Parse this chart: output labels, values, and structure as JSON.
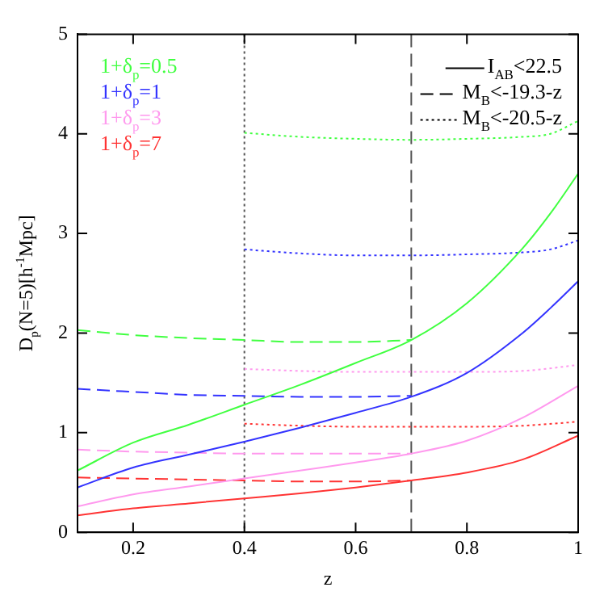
{
  "chart_data": {
    "type": "line",
    "xlabel": "z",
    "ylabel": "D$_{p}$(N=5)[h$^{-1}$Mpc]",
    "xlim": [
      0.1,
      1
    ],
    "ylim": [
      0,
      5
    ],
    "xticks": [
      0.2,
      0.4,
      0.6,
      0.8,
      1
    ],
    "yticks": [
      0,
      1,
      2,
      3,
      4,
      5
    ],
    "grid": false,
    "legend": "top left",
    "marker": "none",
    "series": [
      {
        "name": "1+δ$_{p}$=0.5",
        "color": "#40ff40",
        "line_style": "solid",
        "x": [
          0.1,
          0.2,
          0.3,
          0.4,
          0.5,
          0.6,
          0.7,
          0.8,
          0.9,
          0.95,
          1
        ],
        "values": [
          0.62,
          0.9,
          1.08,
          1.28,
          1.48,
          1.7,
          1.93,
          2.3,
          2.85,
          3.2,
          3.6
        ]
      },
      {
        "name": "1+δ$_{p}$=1",
        "color": "#3333ff",
        "line_style": "solid",
        "x": [
          0.1,
          0.2,
          0.3,
          0.4,
          0.5,
          0.6,
          0.7,
          0.8,
          0.9,
          0.95,
          1
        ],
        "values": [
          0.45,
          0.65,
          0.78,
          0.91,
          1.05,
          1.2,
          1.36,
          1.6,
          2.0,
          2.25,
          2.52
        ]
      },
      {
        "name": "1+δ$_{p}$=3",
        "color": "#ff99ee",
        "line_style": "solid",
        "x": [
          0.1,
          0.2,
          0.3,
          0.4,
          0.5,
          0.6,
          0.7,
          0.8,
          0.9,
          1
        ],
        "values": [
          0.26,
          0.38,
          0.46,
          0.54,
          0.62,
          0.7,
          0.79,
          0.92,
          1.15,
          1.47
        ]
      },
      {
        "name": "1+δ$_{p}$=7",
        "color": "#ff3333",
        "line_style": "solid",
        "x": [
          0.1,
          0.2,
          0.3,
          0.4,
          0.5,
          0.6,
          0.7,
          0.8,
          0.9,
          1
        ],
        "values": [
          0.17,
          0.24,
          0.29,
          0.34,
          0.39,
          0.45,
          0.52,
          0.6,
          0.73,
          0.97
        ]
      },
      {
        "color": "#40ff40",
        "line_style": "dashed",
        "x": [
          0.1,
          0.2,
          0.3,
          0.4,
          0.5,
          0.6,
          0.7
        ],
        "values": [
          2.03,
          1.98,
          1.95,
          1.93,
          1.91,
          1.91,
          1.93
        ]
      },
      {
        "color": "#3333ff",
        "line_style": "dashed",
        "x": [
          0.1,
          0.2,
          0.3,
          0.4,
          0.5,
          0.6,
          0.7
        ],
        "values": [
          1.44,
          1.41,
          1.38,
          1.37,
          1.36,
          1.36,
          1.37
        ]
      },
      {
        "color": "#ff99ee",
        "line_style": "dashed",
        "x": [
          0.1,
          0.2,
          0.3,
          0.4,
          0.5,
          0.6,
          0.7
        ],
        "values": [
          0.83,
          0.81,
          0.8,
          0.79,
          0.79,
          0.79,
          0.79
        ]
      },
      {
        "color": "#ff3333",
        "line_style": "dashed",
        "x": [
          0.1,
          0.2,
          0.3,
          0.4,
          0.5,
          0.6,
          0.7
        ],
        "values": [
          0.55,
          0.54,
          0.53,
          0.52,
          0.51,
          0.51,
          0.52
        ]
      },
      {
        "color": "#40ff40",
        "line_style": "dotted",
        "x": [
          0.4,
          0.5,
          0.6,
          0.7,
          0.8,
          0.9,
          0.95,
          1
        ],
        "values": [
          4.01,
          3.97,
          3.95,
          3.94,
          3.95,
          3.97,
          4.0,
          4.13
        ]
      },
      {
        "color": "#3333ff",
        "line_style": "dotted",
        "x": [
          0.4,
          0.5,
          0.6,
          0.7,
          0.8,
          0.9,
          0.95,
          1
        ],
        "values": [
          2.84,
          2.8,
          2.78,
          2.78,
          2.79,
          2.81,
          2.84,
          2.93
        ]
      },
      {
        "color": "#ff99ee",
        "line_style": "dotted",
        "x": [
          0.4,
          0.5,
          0.6,
          0.7,
          0.8,
          0.9,
          1
        ],
        "values": [
          1.64,
          1.62,
          1.61,
          1.61,
          1.61,
          1.62,
          1.68
        ]
      },
      {
        "color": "#ff3333",
        "line_style": "dotted",
        "x": [
          0.4,
          0.5,
          0.6,
          0.7,
          0.8,
          0.9,
          1
        ],
        "values": [
          1.09,
          1.07,
          1.06,
          1.06,
          1.06,
          1.07,
          1.11
        ]
      }
    ],
    "ref_lines": [
      {
        "axis": "x",
        "value": 0.4,
        "color": "#555555",
        "line_style": "dotted"
      },
      {
        "axis": "x",
        "value": 0.7,
        "color": "#555555",
        "line_style": "dashed"
      }
    ],
    "annotations": [
      "I$_{AB}$<22.5",
      "M$_{B}$<-19.3-z",
      "M$_{B}$<-20.5-z"
    ]
  }
}
